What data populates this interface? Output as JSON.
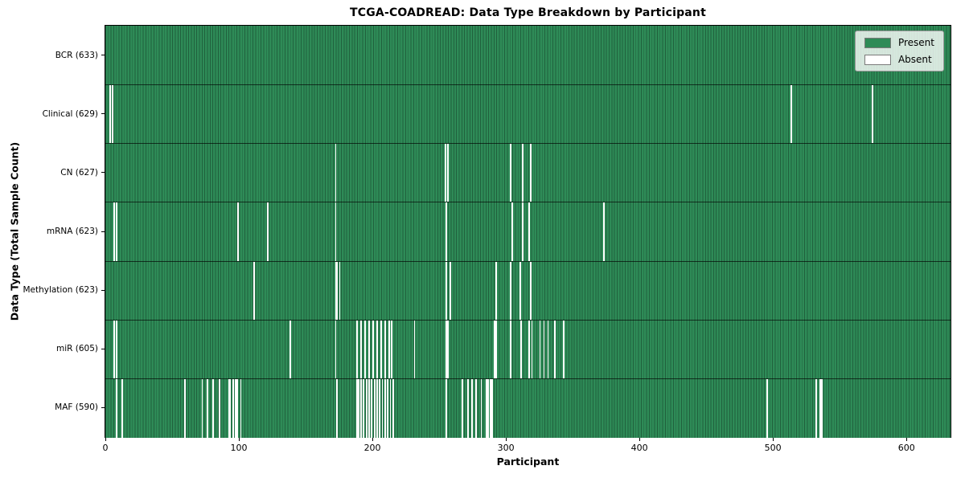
{
  "chart_data": {
    "type": "heatmap",
    "title": "TCGA-COADREAD: Data Type Breakdown by Participant",
    "xlabel": "Participant",
    "ylabel": "Data Type (Total Sample Count)",
    "total_participants": 633,
    "xlim": [
      0,
      633
    ],
    "x_ticks": [
      0,
      100,
      200,
      300,
      400,
      500,
      600
    ],
    "grid": false,
    "legend": {
      "position": "upper right",
      "items": [
        {
          "label": "Present",
          "color": "#2e8b57"
        },
        {
          "label": "Absent",
          "color": "#ffffff"
        }
      ]
    },
    "colors": {
      "present": "#2e8b57",
      "present_edge": "#1e613e",
      "absent": "#ffffff",
      "row_divider": "#1a1a1a",
      "plot_border": "#000000"
    },
    "rows": [
      {
        "label": "BCR",
        "count": 633,
        "tick_label": "BCR (633)",
        "absent_participants": []
      },
      {
        "label": "Clinical",
        "count": 629,
        "tick_label": "Clinical (629)",
        "absent_participants": [
          3,
          5,
          513,
          574
        ]
      },
      {
        "label": "CN",
        "count": 627,
        "tick_label": "CN (627)",
        "absent_participants": [
          172,
          254,
          256,
          303,
          312,
          318
        ]
      },
      {
        "label": "mRNA",
        "count": 623,
        "tick_label": "mRNA (623)",
        "absent_participants": [
          6,
          8,
          99,
          121,
          172,
          255,
          304,
          312,
          317,
          373
        ]
      },
      {
        "label": "Methylation",
        "count": 623,
        "tick_label": "Methylation (623)",
        "absent_participants": [
          111,
          172,
          173,
          175,
          255,
          258,
          292,
          303,
          310,
          318
        ]
      },
      {
        "label": "miR",
        "count": 605,
        "tick_label": "miR (605)",
        "absent_participants": [
          6,
          8,
          138,
          172,
          188,
          191,
          194,
          197,
          200,
          203,
          206,
          209,
          212,
          214,
          231,
          255,
          256,
          291,
          292,
          303,
          311,
          317,
          319,
          325,
          328,
          331,
          336,
          343
        ]
      },
      {
        "label": "MAF",
        "count": 590,
        "tick_label": "MAF (590)",
        "absent_participants": [
          8,
          12,
          59,
          72,
          76,
          80,
          85,
          92,
          93,
          95,
          97,
          98,
          101,
          173,
          188,
          189,
          191,
          193,
          195,
          197,
          199,
          201,
          203,
          205,
          207,
          209,
          211,
          213,
          215,
          255,
          267,
          271,
          274,
          277,
          281,
          285,
          286,
          288,
          289,
          495,
          532,
          535,
          536
        ]
      }
    ]
  }
}
